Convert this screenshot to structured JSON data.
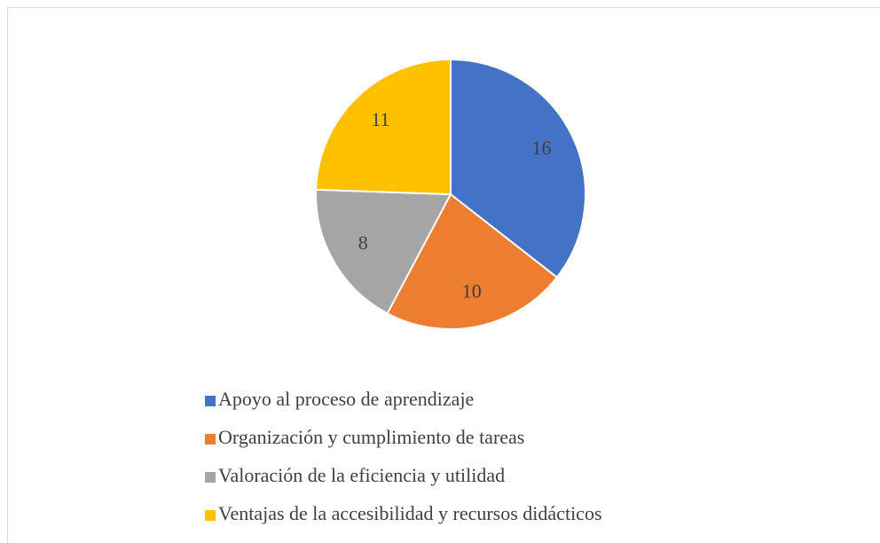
{
  "chart_data": {
    "type": "pie",
    "categories": [
      "Apoyo al proceso de aprendizaje",
      "Organización y cumplimiento de tareas",
      "Valoración de la eficiencia y utilidad",
      "Ventajas de la accesibilidad y recursos didácticos"
    ],
    "values": [
      16,
      10,
      8,
      11
    ],
    "colors": [
      "#4472c4",
      "#ed7d31",
      "#a5a5a5",
      "#ffc000"
    ],
    "legend": "bottom"
  }
}
